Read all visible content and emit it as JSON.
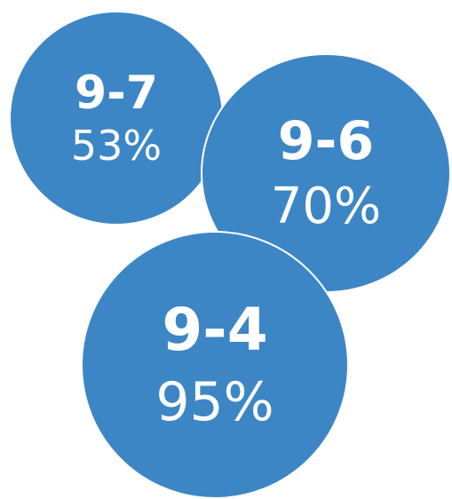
{
  "colors": {
    "bubble_fill": "#3d86c6",
    "bubble_text": "#ffffff",
    "bubble_outline": "#ffffff",
    "background": "#ffffff"
  },
  "bubbles": [
    {
      "label": "9-7",
      "value": "53%",
      "percent": 53
    },
    {
      "label": "9-6",
      "value": "70%",
      "percent": 70
    },
    {
      "label": "9-4",
      "value": "95%",
      "percent": 95
    }
  ]
}
